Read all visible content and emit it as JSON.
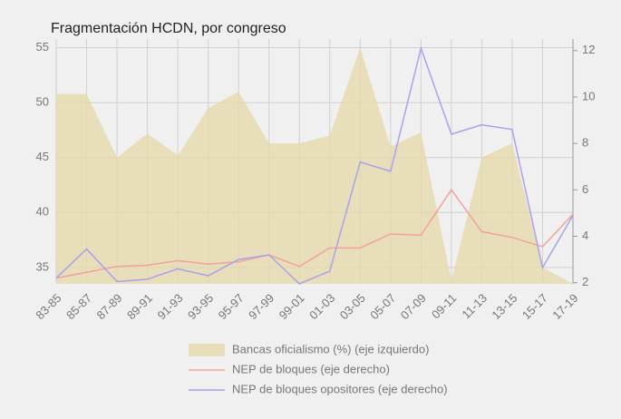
{
  "chart_data": {
    "type": "combo",
    "title": "Fragmentación HCDN, por congreso",
    "categories": [
      "83-85",
      "85-87",
      "87-89",
      "89-91",
      "91-93",
      "93-95",
      "95-97",
      "97-99",
      "99-01",
      "01-03",
      "03-05",
      "05-07",
      "07-09",
      "09-11",
      "11-13",
      "13-15",
      "15-17",
      "17-19"
    ],
    "series": [
      {
        "name": "Bancas oficialismo (%) (eje izquierdo)",
        "type": "area",
        "color": "#e6d9a8",
        "axis": "y",
        "values": [
          50.8,
          50.8,
          45.0,
          47.2,
          45.2,
          49.5,
          51.0,
          46.3,
          46.3,
          47.0,
          55.0,
          46.0,
          47.3,
          33.8,
          45.0,
          46.3,
          35.0,
          33.5
        ]
      },
      {
        "name": "NEP de bloques (eje derecho)",
        "type": "line",
        "color": "#f2a19b",
        "axis": "y2",
        "values": [
          2.2,
          2.45,
          2.7,
          2.75,
          2.95,
          2.8,
          2.9,
          3.2,
          2.7,
          3.5,
          3.5,
          4.1,
          4.05,
          6.0,
          4.2,
          3.95,
          3.55,
          4.95
        ]
      },
      {
        "name": "NEP de bloques opositores (eje derecho)",
        "type": "line",
        "color": "#a9a1ee",
        "axis": "y2",
        "values": [
          2.2,
          3.45,
          2.05,
          2.15,
          2.6,
          2.3,
          3.0,
          3.2,
          1.95,
          2.5,
          7.2,
          6.8,
          12.1,
          8.4,
          8.8,
          8.6,
          2.65,
          4.9
        ]
      }
    ],
    "ylim": [
      33.5,
      55.8
    ],
    "yticks": [
      35,
      40,
      45,
      50,
      55
    ],
    "y2lim": [
      1.95,
      12.5
    ],
    "y2ticks": [
      2,
      4,
      6,
      8,
      10,
      12
    ],
    "grid": true,
    "legend": "bottom"
  }
}
